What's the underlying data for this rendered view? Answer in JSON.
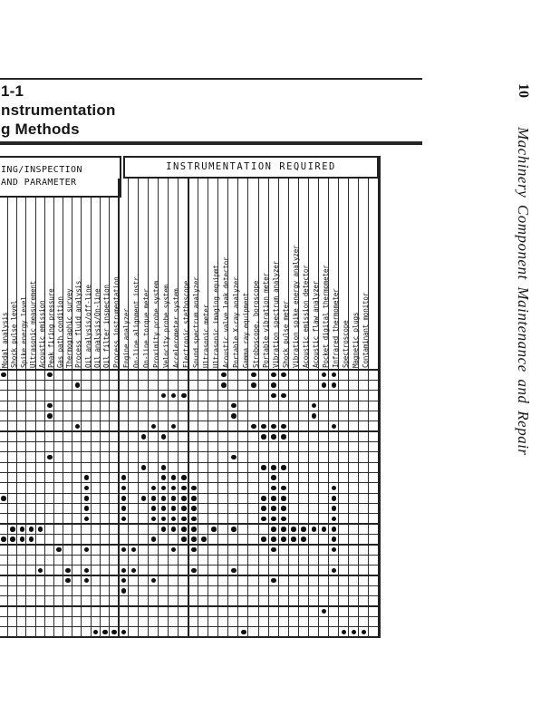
{
  "page": {
    "title_lines": [
      "1-1",
      "nstrumentation",
      "g Methods"
    ],
    "sidebar": {
      "page_number": "10",
      "running_head": "Machinery Component Maintenance and Repair"
    },
    "ink_color": "#1b1b1b",
    "paper_color": "#ffffff"
  },
  "table": {
    "left_header_lines": [
      "ING/INSPECTION",
      "AND PARAMETER"
    ],
    "right_header": "INSTRUMENTATION REQUIRED",
    "left_columns": [
      "",
      "Modal analysis",
      "Shock pulse level",
      "Spike energy level",
      "Ultrasonic measurement",
      "Acoustic emission",
      "Peak firing pressure",
      "Gas path condition",
      "Thermographic survey",
      "Process fluid analysis",
      "Oil analysis/off-line",
      "Oil analysis/On-line",
      "Oil filter inspection"
    ],
    "right_columns": [
      "Process instrumentation",
      "Engine analyzer",
      "On-line alignment instr.",
      "On-line torque meter",
      "Proximity probe system",
      "Velocity probe system",
      "Accelerometer system",
      "Electronic stethoscope",
      "Sound spectrum analyzer",
      "Ultrasonic meter",
      "Ultrasonic imaging equipmt.",
      "Acoustic valve leak detector",
      "Portable X-ray analyzer",
      "Gamma ray equipment",
      "Stroboscope, boroscope",
      "Portable vibration meter",
      "Vibration spectrum analyzer",
      "Shock pulse meter",
      "Vibration spike energy analyzer",
      "Acoustic emission detector",
      "Acoustic flaw analyzer",
      "Pocket digital thermometer",
      "Infrared thermometer",
      "Spectroscope",
      "Magnetic plugs",
      "Contaminant monitor"
    ],
    "matrix": {
      "rows": 26,
      "cols": 39,
      "dots": [
        [
          0,
          0
        ],
        [
          0,
          5
        ],
        [
          0,
          23
        ],
        [
          0,
          26
        ],
        [
          0,
          28
        ],
        [
          0,
          29
        ],
        [
          0,
          33
        ],
        [
          0,
          34
        ],
        [
          1,
          8
        ],
        [
          1,
          23
        ],
        [
          1,
          26
        ],
        [
          1,
          28
        ],
        [
          1,
          33
        ],
        [
          1,
          34
        ],
        [
          2,
          17
        ],
        [
          2,
          18
        ],
        [
          2,
          19
        ],
        [
          2,
          28
        ],
        [
          2,
          29
        ],
        [
          3,
          5
        ],
        [
          3,
          24
        ],
        [
          3,
          32
        ],
        [
          4,
          5
        ],
        [
          4,
          24
        ],
        [
          4,
          32
        ],
        [
          5,
          8
        ],
        [
          5,
          16
        ],
        [
          5,
          18
        ],
        [
          5,
          26
        ],
        [
          5,
          27
        ],
        [
          5,
          28
        ],
        [
          5,
          29
        ],
        [
          5,
          34
        ],
        [
          6,
          15
        ],
        [
          6,
          17
        ],
        [
          6,
          27
        ],
        [
          6,
          28
        ],
        [
          6,
          29
        ],
        [
          8,
          5
        ],
        [
          8,
          24
        ],
        [
          9,
          15
        ],
        [
          9,
          17
        ],
        [
          9,
          27
        ],
        [
          9,
          28
        ],
        [
          9,
          29
        ],
        [
          10,
          9
        ],
        [
          10,
          13
        ],
        [
          10,
          17
        ],
        [
          10,
          18
        ],
        [
          10,
          19
        ],
        [
          10,
          28
        ],
        [
          11,
          9
        ],
        [
          11,
          13
        ],
        [
          11,
          16
        ],
        [
          11,
          17
        ],
        [
          11,
          18
        ],
        [
          11,
          19
        ],
        [
          11,
          20
        ],
        [
          11,
          28
        ],
        [
          11,
          29
        ],
        [
          11,
          34
        ],
        [
          12,
          0
        ],
        [
          12,
          9
        ],
        [
          12,
          13
        ],
        [
          12,
          15
        ],
        [
          12,
          16
        ],
        [
          12,
          17
        ],
        [
          12,
          18
        ],
        [
          12,
          19
        ],
        [
          12,
          20
        ],
        [
          12,
          27
        ],
        [
          12,
          28
        ],
        [
          12,
          29
        ],
        [
          12,
          34
        ],
        [
          13,
          9
        ],
        [
          13,
          13
        ],
        [
          13,
          16
        ],
        [
          13,
          17
        ],
        [
          13,
          18
        ],
        [
          13,
          19
        ],
        [
          13,
          20
        ],
        [
          13,
          27
        ],
        [
          13,
          28
        ],
        [
          13,
          29
        ],
        [
          13,
          34
        ],
        [
          14,
          9
        ],
        [
          14,
          13
        ],
        [
          14,
          16
        ],
        [
          14,
          17
        ],
        [
          14,
          18
        ],
        [
          14,
          19
        ],
        [
          14,
          20
        ],
        [
          14,
          27
        ],
        [
          14,
          28
        ],
        [
          14,
          29
        ],
        [
          14,
          34
        ],
        [
          15,
          1
        ],
        [
          15,
          2
        ],
        [
          15,
          3
        ],
        [
          15,
          4
        ],
        [
          15,
          17
        ],
        [
          15,
          18
        ],
        [
          15,
          19
        ],
        [
          15,
          20
        ],
        [
          15,
          22
        ],
        [
          15,
          24
        ],
        [
          15,
          28
        ],
        [
          15,
          29
        ],
        [
          15,
          30
        ],
        [
          15,
          31
        ],
        [
          15,
          32
        ],
        [
          15,
          33
        ],
        [
          15,
          34
        ],
        [
          16,
          0
        ],
        [
          16,
          1
        ],
        [
          16,
          2
        ],
        [
          16,
          3
        ],
        [
          16,
          16
        ],
        [
          16,
          19
        ],
        [
          16,
          20
        ],
        [
          16,
          21
        ],
        [
          16,
          27
        ],
        [
          16,
          28
        ],
        [
          16,
          29
        ],
        [
          16,
          30
        ],
        [
          16,
          31
        ],
        [
          16,
          34
        ],
        [
          17,
          6
        ],
        [
          17,
          9
        ],
        [
          17,
          13
        ],
        [
          17,
          14
        ],
        [
          17,
          18
        ],
        [
          17,
          20
        ],
        [
          17,
          28
        ],
        [
          17,
          34
        ],
        [
          19,
          4
        ],
        [
          19,
          7
        ],
        [
          19,
          9
        ],
        [
          19,
          13
        ],
        [
          19,
          14
        ],
        [
          19,
          20
        ],
        [
          19,
          24
        ],
        [
          19,
          34
        ],
        [
          20,
          7
        ],
        [
          20,
          9
        ],
        [
          20,
          13
        ],
        [
          20,
          16
        ],
        [
          20,
          28
        ],
        [
          21,
          13
        ],
        [
          23,
          33
        ],
        [
          25,
          10
        ],
        [
          25,
          11
        ],
        [
          25,
          12
        ],
        [
          25,
          13
        ],
        [
          25,
          25
        ],
        [
          25,
          35
        ],
        [
          25,
          36
        ],
        [
          25,
          37
        ]
      ]
    }
  }
}
